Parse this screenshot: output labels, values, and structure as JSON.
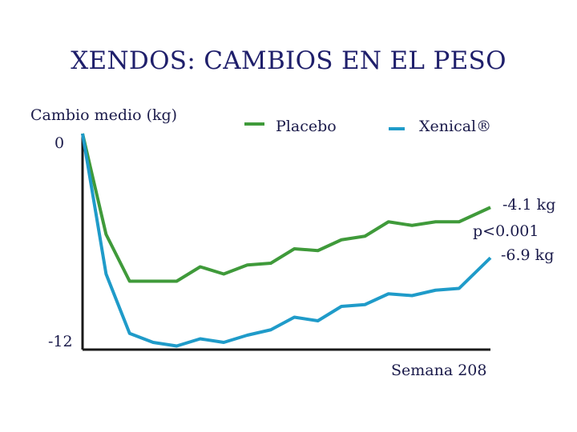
{
  "title": "XENDOS: CAMBIOS EN EL PESO",
  "colors": {
    "placebo": "#3f9a3a",
    "xenical": "#1f9bc9",
    "axis": "#1a1a1a",
    "text": "#1a1a4a"
  },
  "chart_data": {
    "type": "line",
    "title": "XENDOS: CAMBIOS EN EL PESO",
    "ylabel": "Cambio medio (kg)",
    "xlabel": "Semana 208",
    "ylim": [
      -12,
      0
    ],
    "y_ticks": [
      "0",
      "-12"
    ],
    "x_range": [
      0,
      208
    ],
    "grid": false,
    "legend": "top",
    "legend_labels": [
      "Placebo",
      "Xenical®"
    ],
    "x": [
      0,
      12,
      24,
      36,
      48,
      60,
      72,
      84,
      96,
      108,
      120,
      132,
      144,
      156,
      168,
      180,
      192,
      208
    ],
    "series": [
      {
        "name": "Placebo",
        "color": "#3f9a3a",
        "values": [
          0,
          -5.6,
          -8.2,
          -8.2,
          -8.2,
          -7.4,
          -7.8,
          -7.3,
          -7.2,
          -6.4,
          -6.5,
          -5.9,
          -5.7,
          -4.9,
          -5.1,
          -4.9,
          -4.9,
          -4.1
        ]
      },
      {
        "name": "Xenical®",
        "color": "#1f9bc9",
        "values": [
          0,
          -7.8,
          -11.1,
          -11.6,
          -11.8,
          -11.4,
          -11.6,
          -11.2,
          -10.9,
          -10.2,
          -10.4,
          -9.6,
          -9.5,
          -8.9,
          -9.0,
          -8.7,
          -8.6,
          -6.9
        ]
      }
    ],
    "annotations": [
      "-4.1 kg",
      "p<0.001",
      "-6.9 kg"
    ]
  }
}
